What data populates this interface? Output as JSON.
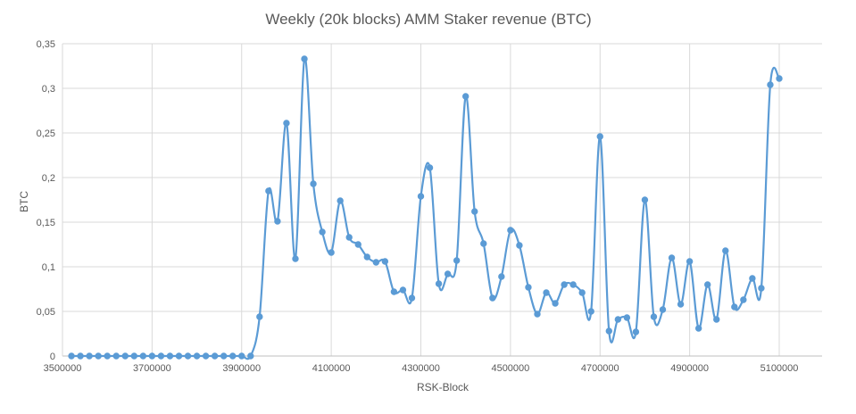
{
  "chart_data": {
    "type": "line",
    "title": "Weekly (20k blocks) AMM Staker revenue (BTC)",
    "xlabel": "RSK-Block",
    "ylabel": "BTC",
    "xlim": [
      3500000,
      5100000
    ],
    "ylim": [
      0,
      0.35
    ],
    "x_ticks": [
      "3500000",
      "3700000",
      "3900000",
      "4100000",
      "4300000",
      "4500000",
      "4700000",
      "4900000",
      "5100000"
    ],
    "x_tick_values": [
      3500000,
      3700000,
      3900000,
      4100000,
      4300000,
      4500000,
      4700000,
      4900000,
      5100000
    ],
    "y_ticks": [
      "0",
      "0,05",
      "0,1",
      "0,15",
      "0,2",
      "0,25",
      "0,3",
      "0,35"
    ],
    "y_tick_values": [
      0,
      0.05,
      0.1,
      0.15,
      0.2,
      0.25,
      0.3,
      0.35
    ],
    "grid": true,
    "smooth": true,
    "color": "#5b9bd5",
    "grid_color": "#d9d9d9",
    "series": [
      {
        "points": [
          [
            3520000,
            0
          ],
          [
            3540000,
            0
          ],
          [
            3560000,
            0
          ],
          [
            3580000,
            0
          ],
          [
            3600000,
            0
          ],
          [
            3620000,
            0
          ],
          [
            3640000,
            0
          ],
          [
            3660000,
            0
          ],
          [
            3680000,
            0
          ],
          [
            3700000,
            0
          ],
          [
            3720000,
            0
          ],
          [
            3740000,
            0
          ],
          [
            3760000,
            0
          ],
          [
            3780000,
            0
          ],
          [
            3800000,
            0
          ],
          [
            3820000,
            0
          ],
          [
            3840000,
            0
          ],
          [
            3860000,
            0
          ],
          [
            3880000,
            0
          ],
          [
            3900000,
            0
          ],
          [
            3920000,
            0
          ],
          [
            3940000,
            0.044
          ],
          [
            3960000,
            0.185
          ],
          [
            3980000,
            0.151
          ],
          [
            4000000,
            0.261
          ],
          [
            4020000,
            0.109
          ],
          [
            4040000,
            0.333
          ],
          [
            4060000,
            0.193
          ],
          [
            4080000,
            0.139
          ],
          [
            4100000,
            0.116
          ],
          [
            4120000,
            0.174
          ],
          [
            4140000,
            0.133
          ],
          [
            4160000,
            0.125
          ],
          [
            4180000,
            0.111
          ],
          [
            4200000,
            0.105
          ],
          [
            4220000,
            0.106
          ],
          [
            4240000,
            0.072
          ],
          [
            4260000,
            0.074
          ],
          [
            4280000,
            0.065
          ],
          [
            4300000,
            0.179
          ],
          [
            4320000,
            0.211
          ],
          [
            4340000,
            0.081
          ],
          [
            4360000,
            0.092
          ],
          [
            4380000,
            0.107
          ],
          [
            4400000,
            0.291
          ],
          [
            4420000,
            0.162
          ],
          [
            4440000,
            0.126
          ],
          [
            4460000,
            0.065
          ],
          [
            4480000,
            0.089
          ],
          [
            4500000,
            0.141
          ],
          [
            4520000,
            0.124
          ],
          [
            4540000,
            0.077
          ],
          [
            4560000,
            0.047
          ],
          [
            4580000,
            0.071
          ],
          [
            4600000,
            0.059
          ],
          [
            4620000,
            0.08
          ],
          [
            4640000,
            0.08
          ],
          [
            4660000,
            0.071
          ],
          [
            4680000,
            0.05
          ],
          [
            4700000,
            0.246
          ],
          [
            4720000,
            0.028
          ],
          [
            4740000,
            0.041
          ],
          [
            4760000,
            0.043
          ],
          [
            4780000,
            0.027
          ],
          [
            4800000,
            0.175
          ],
          [
            4820000,
            0.044
          ],
          [
            4840000,
            0.052
          ],
          [
            4860000,
            0.11
          ],
          [
            4880000,
            0.058
          ],
          [
            4900000,
            0.106
          ],
          [
            4920000,
            0.031
          ],
          [
            4940000,
            0.08
          ],
          [
            4960000,
            0.041
          ],
          [
            4980000,
            0.118
          ],
          [
            5000000,
            0.055
          ],
          [
            5020000,
            0.063
          ],
          [
            5040000,
            0.087
          ],
          [
            5060000,
            0.076
          ],
          [
            5080000,
            0.304
          ],
          [
            5100000,
            0.311
          ]
        ]
      }
    ]
  }
}
